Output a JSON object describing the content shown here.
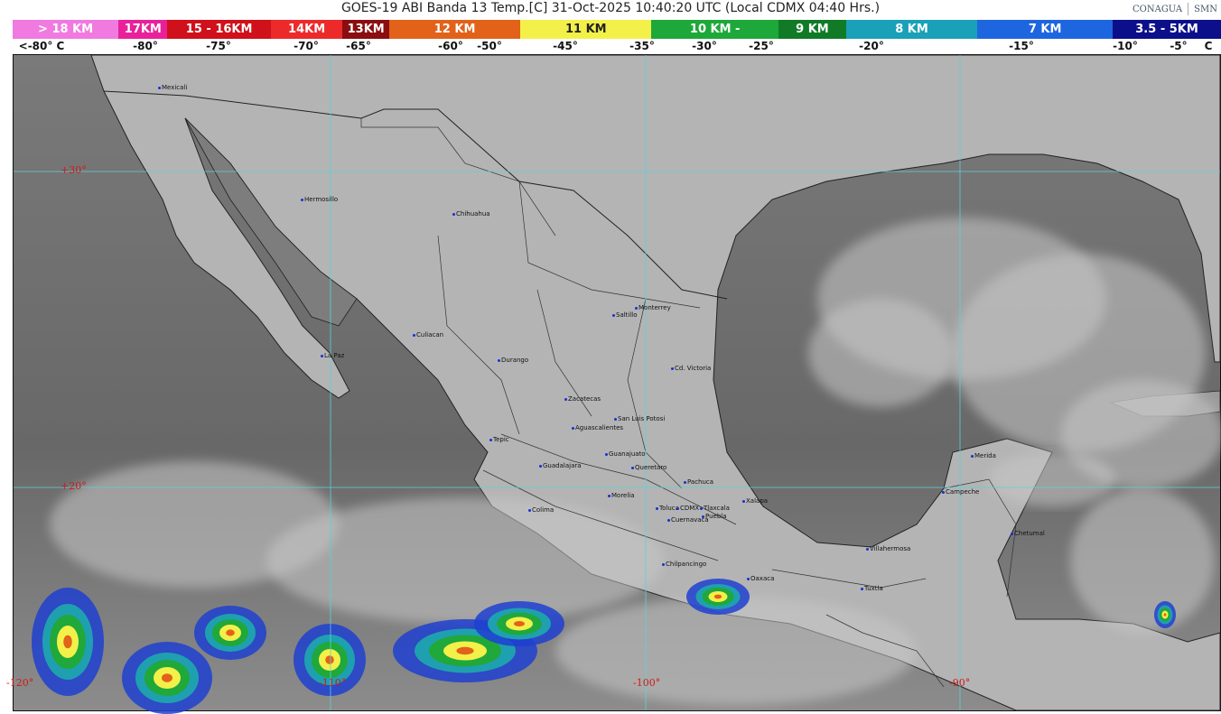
{
  "header": {
    "title": "GOES-19 ABI Banda 13 Temp.[C] 31-Oct-2025 10:40:20 UTC (Local CDMX  04:40 Hrs.)",
    "logos": [
      "CONAGUA",
      "SMN"
    ]
  },
  "legend": {
    "segments": [
      {
        "label": "> 18 KM",
        "color": "#f07adf"
      },
      {
        "label": "17KM",
        "color": "#e8219a"
      },
      {
        "label": "15 - 16KM",
        "color": "#d0101a"
      },
      {
        "label": "14KM",
        "color": "#ec2a2a"
      },
      {
        "label": "13KM",
        "color": "#8a0d10"
      },
      {
        "label": "12 KM",
        "color": "#e2621a"
      },
      {
        "label": "11 KM",
        "color": "#f3f04a"
      },
      {
        "label": "10 KM -",
        "color": "#1ea83a"
      },
      {
        "label": "9 KM",
        "color": "#117a26"
      },
      {
        "label": "8 KM",
        "color": "#1aa0b8"
      },
      {
        "label": "7 KM",
        "color": "#1e66e0"
      },
      {
        "label": "3.5 - 5KM",
        "color": "#0c0f8a"
      }
    ],
    "temps": [
      "<-80° C",
      "-80°",
      "-75°",
      "-70°",
      "-65°",
      "-60°",
      "-50°",
      "-45°",
      "-35°",
      "-30°",
      "-25°",
      "-20°",
      "-15°",
      "-10°",
      "-5°",
      "C"
    ]
  },
  "map": {
    "latitudes": [
      "+30°",
      "+20°"
    ],
    "longitudes": [
      "-120°",
      "-110°",
      "-100°",
      "-90°"
    ],
    "cities": [
      "Mexicali",
      "Hermosillo",
      "Chihuahua",
      "Culiacan",
      "La Paz",
      "Durango",
      "Monterrey",
      "Saltillo",
      "Cd. Victoria",
      "Zacatecas",
      "San Luis Potosi",
      "Aguascalientes",
      "Tepic",
      "Guanajuato",
      "Guadalajara",
      "Queretaro",
      "Pachuca",
      "Morelia",
      "Colima",
      "Toluca",
      "CDMX",
      "Tlaxcala",
      "Puebla",
      "Xalapa",
      "Cuernavaca",
      "Chilpancingo",
      "Oaxaca",
      "Villahermosa",
      "Tuxtla",
      "Campeche",
      "Merida",
      "Chetumal"
    ],
    "colors": {
      "land": "#b4b4b4",
      "ocean": "#6e6e6e",
      "gridline": "#5fd0d8",
      "grid_label": "#d01818",
      "city_dot": "#1a2fd0"
    }
  }
}
